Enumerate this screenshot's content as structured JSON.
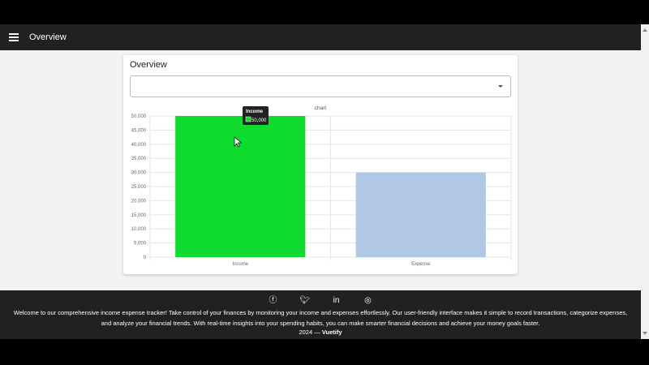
{
  "appbar": {
    "title": "Overview",
    "menu_icon": "hamburger-icon"
  },
  "card": {
    "title": "Overview",
    "select_value": ""
  },
  "chart_data": {
    "type": "bar",
    "title": "chart",
    "categories": [
      "Income",
      "Expense"
    ],
    "values": [
      50000,
      30000
    ],
    "colors": [
      "#0fda2e",
      "#b0c8e6"
    ],
    "ylim": [
      0,
      50000
    ],
    "yticks": [
      "0",
      "5,000",
      "10,000",
      "15,000",
      "20,000",
      "25,000",
      "30,000",
      "35,000",
      "40,000",
      "45,000",
      "50,000"
    ],
    "grid": true,
    "tooltip": {
      "title": "Income",
      "value": "50,000"
    }
  },
  "footer": {
    "icons": [
      "facebook-icon",
      "twitter-icon",
      "linkedin-icon",
      "instagram-icon"
    ],
    "text": "Welcome to our comprehensive income expense tracker! Take control of your finances by monitoring your income and expenses effortlessly. Our user-friendly interface makes it simple to record transactions, categorize expenses, and analyze your financial trends. With real-time insights into your spending habits, you can make smarter financial decisions and achieve your money goals faster.",
    "year": "2024 —",
    "brand": "Vuetify"
  }
}
